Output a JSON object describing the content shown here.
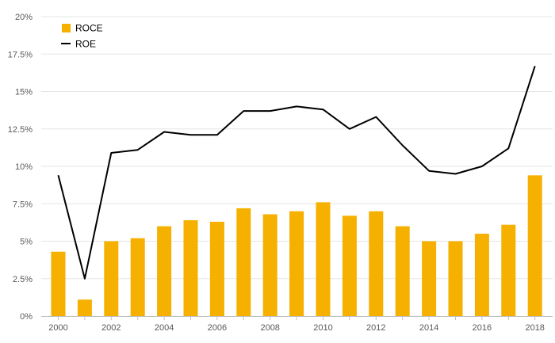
{
  "chart_data": {
    "type": "bar+line",
    "title": "",
    "xlabel": "",
    "ylabel": "",
    "ylim": [
      0,
      20
    ],
    "yticks": [
      "0%",
      "2.5%",
      "5%",
      "7.5%",
      "10%",
      "12.5%",
      "15%",
      "17.5%",
      "20%"
    ],
    "xtick_labels": [
      "2000",
      "2002",
      "2004",
      "2006",
      "2008",
      "2010",
      "2012",
      "2014",
      "2016",
      "2018"
    ],
    "categories": [
      "2000",
      "2001",
      "2002",
      "2003",
      "2004",
      "2005",
      "2006",
      "2007",
      "2008",
      "2009",
      "2010",
      "2011",
      "2012",
      "2013",
      "2014",
      "2015",
      "2016",
      "2017",
      "2018"
    ],
    "grid": true,
    "legend_position": "top-left",
    "series": [
      {
        "name": "ROCE",
        "kind": "bar",
        "color": "#F5B000",
        "values": [
          4.3,
          1.1,
          5.0,
          5.2,
          6.0,
          6.4,
          6.3,
          7.2,
          6.8,
          7.0,
          7.6,
          6.7,
          7.0,
          6.0,
          5.0,
          5.0,
          5.5,
          6.1,
          9.4
        ]
      },
      {
        "name": "ROE",
        "kind": "line",
        "color": "#000000",
        "values": [
          9.4,
          2.5,
          10.9,
          11.1,
          12.3,
          12.1,
          12.1,
          13.7,
          13.7,
          14.0,
          13.8,
          12.5,
          13.3,
          11.4,
          9.7,
          9.5,
          10.0,
          11.2,
          16.7
        ]
      }
    ]
  }
}
